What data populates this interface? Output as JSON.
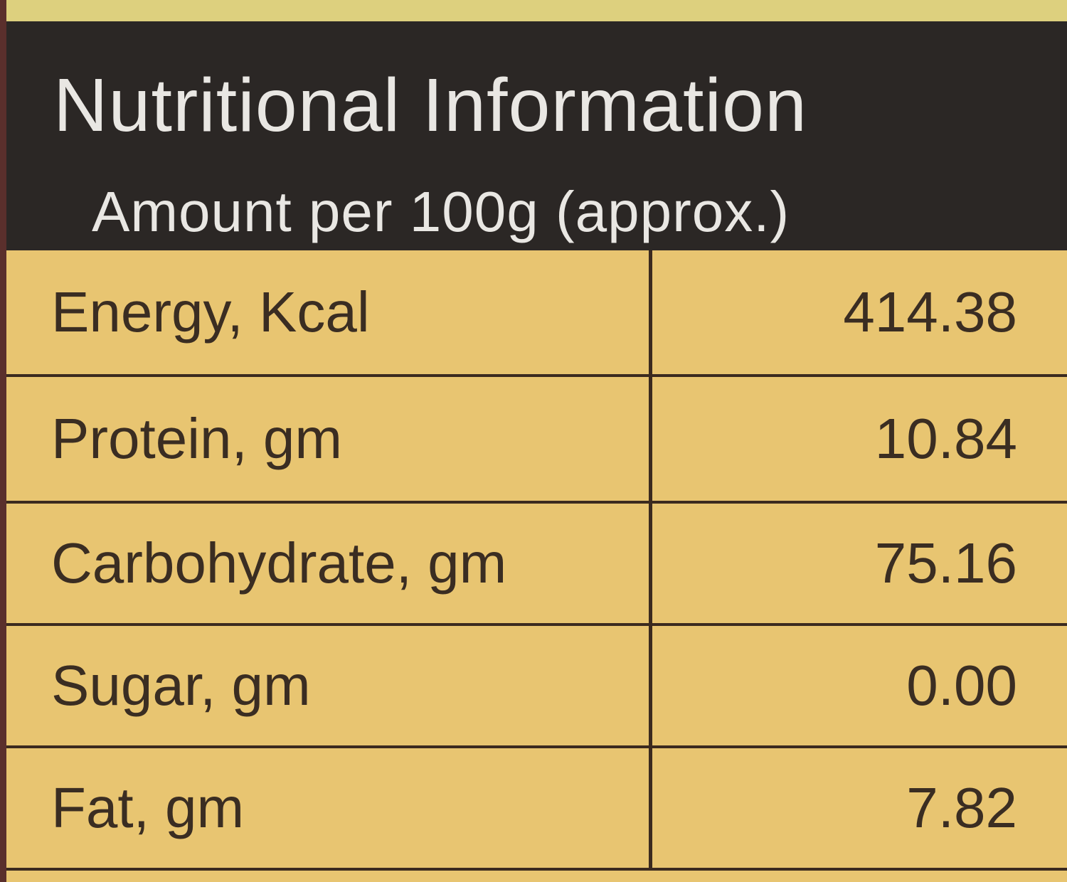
{
  "header": {
    "title": "Nutritional Information",
    "subtitle": "Amount per 100g (approx.)"
  },
  "table": {
    "rows": [
      [
        "Energy, Kcal",
        "414.38"
      ],
      [
        "Protein, gm",
        "10.84"
      ],
      [
        "Carbohydrate, gm",
        "75.16"
      ],
      [
        "Sugar, gm",
        "0.00"
      ],
      [
        "Fat, gm",
        "7.82"
      ]
    ]
  }
}
